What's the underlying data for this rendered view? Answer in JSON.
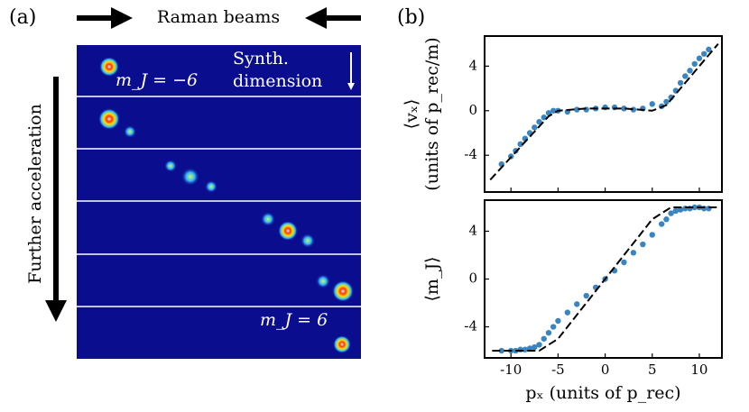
{
  "panel_a": {
    "label": "(a)",
    "beams": "Raman beams",
    "synth_line1": "Synth.",
    "synth_line2": "dimension",
    "mj_low": "m_J = −6",
    "mj_high": "m_J = 6",
    "accel": "Further acceleration"
  },
  "panel_b": {
    "label": "(b)"
  },
  "chart_data": [
    {
      "type": "scatter",
      "ylabel": "⟨vₓ⟩",
      "ylabel2": "(units of p_rec/m)",
      "xlim": [
        -12.8,
        12.4
      ],
      "ylim": [
        -7.3,
        6.7
      ],
      "xticks": [
        -10,
        -5,
        0,
        5,
        10
      ],
      "xticklabels": false,
      "yticks": [
        -4,
        0,
        4
      ],
      "series": [
        {
          "mode": "markers",
          "color": "#3a84c0",
          "x": [
            -11,
            -10,
            -9.5,
            -9,
            -8.5,
            -8,
            -7.5,
            -7,
            -6.5,
            -6,
            -5.5,
            -5,
            -4,
            -3,
            -2,
            -1,
            0,
            1,
            2,
            3,
            4,
            5,
            6,
            6.5,
            7,
            7.5,
            8,
            8.5,
            9,
            9.5,
            10,
            10.5,
            11
          ],
          "values": [
            -4.8,
            -4.1,
            -3.6,
            -3.0,
            -2.5,
            -2.0,
            -1.5,
            -1.0,
            -0.6,
            -0.2,
            0,
            0,
            -0.1,
            0.1,
            0.1,
            0.2,
            0.3,
            0.3,
            0.2,
            0.1,
            0.2,
            0.6,
            0.4,
            0.8,
            1.2,
            1.8,
            2.5,
            3.1,
            3.6,
            4.2,
            4.7,
            5.1,
            5.5
          ]
        },
        {
          "mode": "line",
          "linestyle": "dashed",
          "color": "#000000",
          "x": [
            -12.2,
            -6,
            -5,
            -2,
            2,
            5,
            6.5,
            12
          ],
          "values": [
            -6.2,
            -0.5,
            0,
            0.2,
            0.2,
            0,
            0.5,
            6
          ]
        }
      ]
    },
    {
      "type": "scatter",
      "xlabel": "pₓ (units of p_rec)",
      "ylabel": "⟨m_J⟩",
      "xlim": [
        -12.8,
        12.4
      ],
      "ylim": [
        -6.6,
        6.6
      ],
      "xticks": [
        -10,
        -5,
        0,
        5,
        10
      ],
      "xticklabels": true,
      "yticks": [
        -4,
        0,
        4
      ],
      "series": [
        {
          "mode": "markers",
          "color": "#3a84c0",
          "x": [
            -11,
            -10,
            -9.5,
            -9,
            -8.5,
            -8,
            -7.5,
            -7,
            -6.5,
            -6,
            -5.5,
            -5,
            -4,
            -3,
            -2,
            -1,
            0,
            1,
            2,
            3,
            4,
            5,
            6,
            6.5,
            7,
            7.5,
            8,
            8.5,
            9,
            9.5,
            10,
            10.5,
            11
          ],
          "values": [
            -6,
            -6,
            -6,
            -5.9,
            -5.9,
            -5.8,
            -5.7,
            -5.5,
            -5.0,
            -4.5,
            -4.0,
            -3.5,
            -2.8,
            -2.1,
            -1.4,
            -0.7,
            0,
            0.7,
            1.4,
            2.2,
            2.9,
            3.7,
            4.6,
            5.0,
            5.5,
            5.7,
            5.8,
            5.9,
            5.9,
            6,
            6,
            5.9,
            5.9
          ]
        },
        {
          "mode": "line",
          "linestyle": "dashed",
          "color": "#000000",
          "x": [
            -12,
            -7,
            -5,
            5,
            7,
            12
          ],
          "values": [
            -6,
            -6,
            -5,
            5,
            6,
            6
          ]
        }
      ]
    }
  ]
}
